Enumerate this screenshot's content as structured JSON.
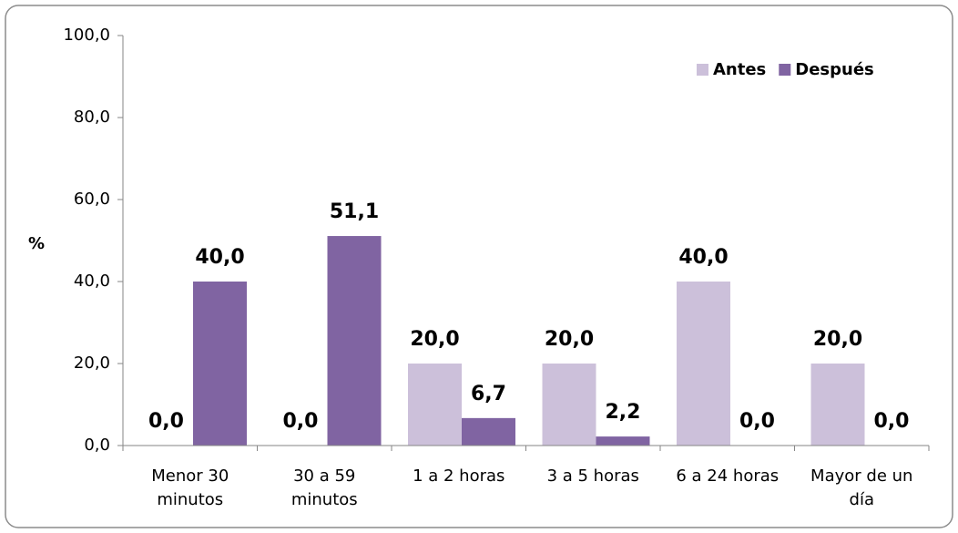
{
  "chart_data": {
    "type": "bar",
    "y_label": "%",
    "categories": [
      "Menor 30\nminutos",
      "30 a 59\nminutos",
      "1 a 2 horas",
      "3 a 5 horas",
      "6 a 24 horas",
      "Mayor de un\ndía"
    ],
    "series": [
      {
        "name": "Antes",
        "color": "#ccc0da",
        "values": [
          0,
          0,
          20,
          20,
          40,
          20
        ],
        "value_labels": [
          "0,0",
          "0,0",
          "20,0",
          "20,0",
          "40,0",
          "20,0"
        ]
      },
      {
        "name": "Después",
        "color": "#8064a2",
        "values": [
          40,
          51.1,
          6.7,
          2.2,
          0,
          0
        ],
        "value_labels": [
          "40,0",
          "51,1",
          "6,7",
          "2,2",
          "0,0",
          "0,0"
        ]
      }
    ],
    "ylim": [
      0,
      100
    ],
    "yticks": [
      {
        "value": 0,
        "label": "0,0"
      },
      {
        "value": 20,
        "label": "20,0"
      },
      {
        "value": 40,
        "label": "40,0"
      },
      {
        "value": 60,
        "label": "60,0"
      },
      {
        "value": 80,
        "label": "80,0"
      },
      {
        "value": 100,
        "label": "100,0"
      }
    ],
    "legend": "top-right"
  }
}
